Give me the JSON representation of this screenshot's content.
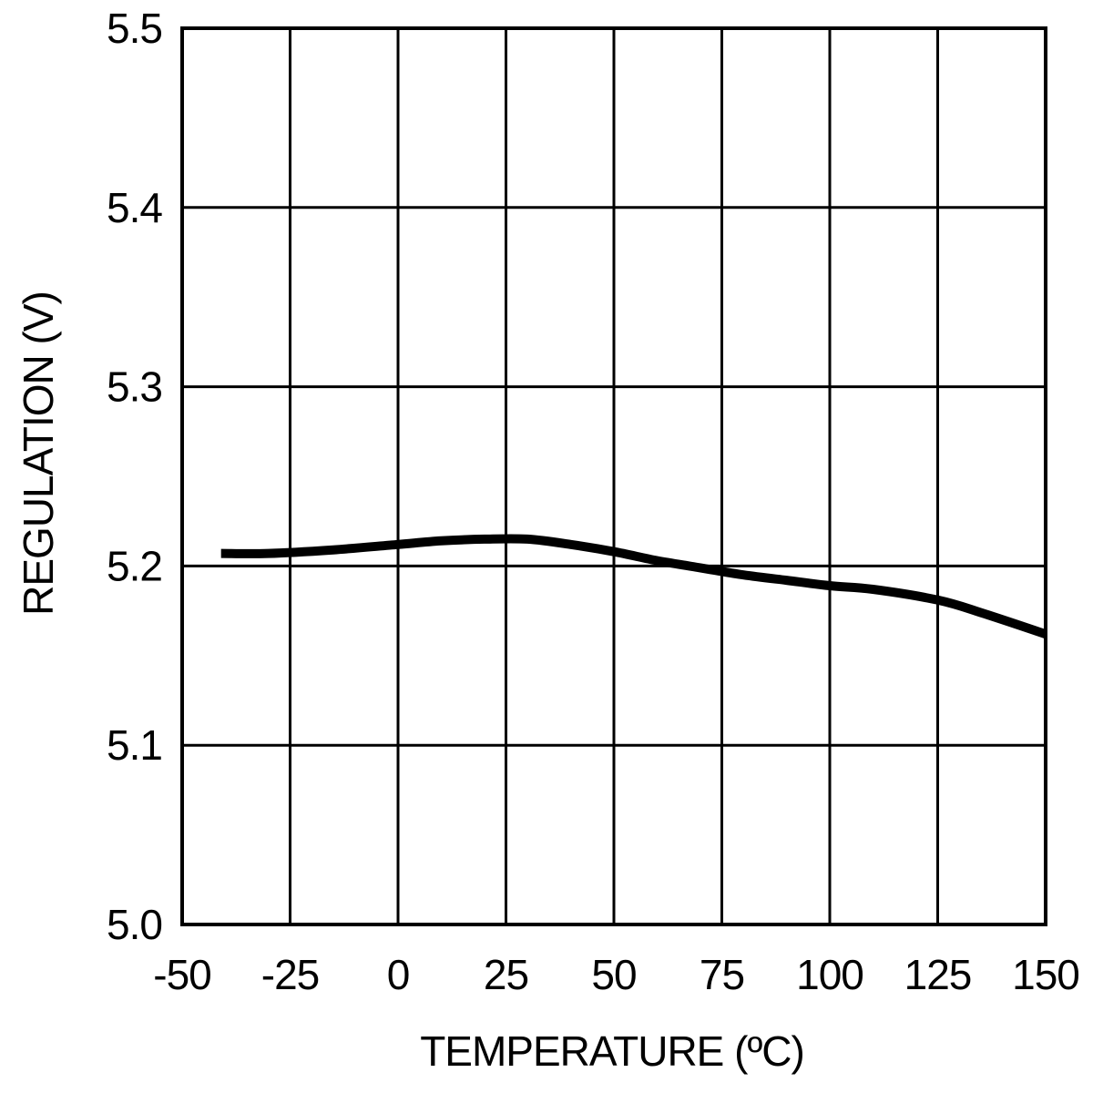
{
  "chart_data": {
    "type": "line",
    "title": "",
    "xlabel": "TEMPERATURE (ºC)",
    "ylabel": "REGULATION (V)",
    "xlim": [
      -50,
      150
    ],
    "ylim": [
      5.0,
      5.5
    ],
    "x_ticks": [
      -50,
      -25,
      0,
      25,
      50,
      75,
      100,
      125,
      150
    ],
    "x_tick_labels": [
      "-50",
      "-25",
      "0",
      "25",
      "50",
      "75",
      "100",
      "125",
      "150"
    ],
    "y_ticks": [
      5.0,
      5.1,
      5.2,
      5.3,
      5.4,
      5.5
    ],
    "y_tick_labels": [
      "5.0",
      "5.1",
      "5.2",
      "5.3",
      "5.4",
      "5.5"
    ],
    "grid": true,
    "legend": "none",
    "line_color": "#000000",
    "series": [
      {
        "x": [
          -41,
          -30,
          -15,
          0,
          10,
          20,
          30,
          40,
          50,
          60,
          70,
          80,
          90,
          100,
          110,
          125,
          135,
          150
        ],
        "values": [
          5.207,
          5.207,
          5.209,
          5.212,
          5.214,
          5.215,
          5.215,
          5.212,
          5.208,
          5.203,
          5.199,
          5.195,
          5.192,
          5.189,
          5.187,
          5.181,
          5.174,
          5.162
        ]
      }
    ]
  }
}
